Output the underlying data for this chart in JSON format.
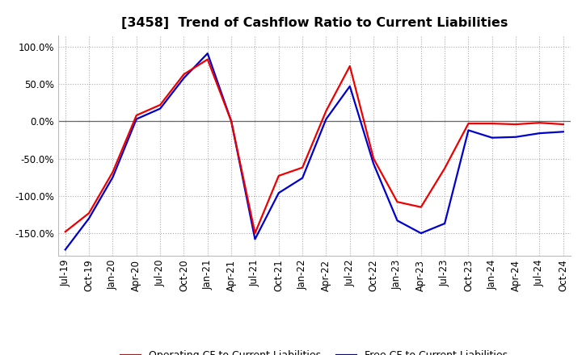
{
  "title": "[3458]  Trend of Cashflow Ratio to Current Liabilities",
  "ylim": [
    -180,
    115
  ],
  "yticks": [
    -150,
    -100,
    -50,
    0,
    50,
    100
  ],
  "ytick_labels": [
    "-150.0%",
    "-100.0%",
    "-50.0%",
    "0.0%",
    "50.0%",
    "100.0%"
  ],
  "x_labels": [
    "Jul-19",
    "Oct-19",
    "Jan-20",
    "Apr-20",
    "Jul-20",
    "Oct-20",
    "Jan-21",
    "Apr-21",
    "Jul-21",
    "Oct-21",
    "Jan-22",
    "Apr-22",
    "Jul-22",
    "Oct-22",
    "Jan-23",
    "Apr-23",
    "Jul-23",
    "Oct-23",
    "Jan-24",
    "Apr-24",
    "Jul-24",
    "Oct-24"
  ],
  "operating_cf": [
    -148,
    -123,
    -68,
    8,
    22,
    63,
    83,
    0,
    -150,
    -73,
    -62,
    14,
    74,
    -50,
    -108,
    -115,
    -63,
    -3,
    -3,
    -4,
    -2,
    -4
  ],
  "free_cf": [
    -172,
    -130,
    -75,
    3,
    17,
    58,
    91,
    0,
    -158,
    -96,
    -76,
    3,
    47,
    -57,
    -133,
    -150,
    -137,
    -12,
    -22,
    -21,
    -16,
    -14
  ],
  "operating_color": "#EE0000",
  "free_color": "#0000CC",
  "bg_color": "#FFFFFF",
  "plot_bg_color": "#FFFFFF",
  "grid_color": "#AAAAAA",
  "zero_line_color": "#666666",
  "legend_op": "Operating CF to Current Liabilities",
  "legend_free": "Free CF to Current Liabilities",
  "title_fontsize": 11.5,
  "axis_fontsize": 8.5,
  "legend_fontsize": 9,
  "line_width": 1.6
}
